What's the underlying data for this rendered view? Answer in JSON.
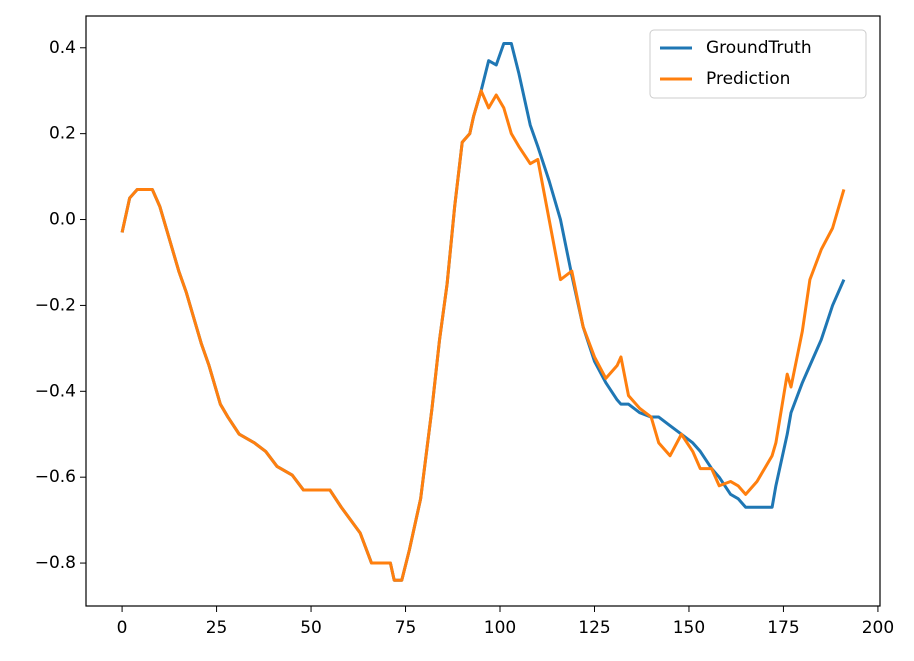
{
  "chart_data": {
    "type": "line",
    "x": [
      0,
      2,
      4,
      8,
      10,
      13,
      15,
      17,
      19,
      21,
      23,
      26,
      28,
      31,
      35,
      38,
      41,
      45,
      48,
      50,
      55,
      58,
      63,
      66,
      71,
      72,
      74,
      76,
      79,
      82,
      84,
      86,
      88,
      90,
      92,
      93,
      95,
      97,
      99,
      101,
      103,
      105,
      108,
      110,
      113,
      116,
      119,
      122,
      125,
      128,
      131,
      132,
      134,
      137,
      140,
      142,
      145,
      148,
      151,
      153,
      156,
      158,
      161,
      163,
      165,
      168,
      170,
      172,
      173,
      176,
      177,
      180,
      182,
      185,
      188,
      191
    ],
    "series": [
      {
        "name": "GroundTruth",
        "color": "#1f77b4",
        "values": [
          -0.03,
          0.05,
          0.07,
          0.07,
          0.03,
          -0.06,
          -0.12,
          -0.17,
          -0.23,
          -0.29,
          -0.34,
          -0.43,
          -0.46,
          -0.5,
          -0.52,
          -0.54,
          -0.575,
          -0.595,
          -0.63,
          -0.63,
          -0.63,
          -0.67,
          -0.73,
          -0.8,
          -0.8,
          -0.84,
          -0.84,
          -0.77,
          -0.65,
          -0.44,
          -0.28,
          -0.15,
          0.03,
          0.18,
          0.2,
          0.24,
          0.3,
          0.37,
          0.36,
          0.41,
          0.41,
          0.34,
          0.22,
          0.17,
          0.09,
          0.0,
          -0.13,
          -0.25,
          -0.33,
          -0.38,
          -0.42,
          -0.43,
          -0.43,
          -0.45,
          -0.46,
          -0.46,
          -0.48,
          -0.5,
          -0.52,
          -0.54,
          -0.58,
          -0.6,
          -0.64,
          -0.65,
          -0.67,
          -0.67,
          -0.67,
          -0.67,
          -0.62,
          -0.5,
          -0.45,
          -0.38,
          -0.34,
          -0.28,
          -0.2,
          -0.14
        ]
      },
      {
        "name": "Prediction",
        "color": "#ff7f0e",
        "values": [
          -0.03,
          0.05,
          0.07,
          0.07,
          0.03,
          -0.06,
          -0.12,
          -0.17,
          -0.23,
          -0.29,
          -0.34,
          -0.43,
          -0.46,
          -0.5,
          -0.52,
          -0.54,
          -0.575,
          -0.595,
          -0.63,
          -0.63,
          -0.63,
          -0.67,
          -0.73,
          -0.8,
          -0.8,
          -0.84,
          -0.84,
          -0.77,
          -0.65,
          -0.44,
          -0.28,
          -0.15,
          0.03,
          0.18,
          0.2,
          0.24,
          0.3,
          0.26,
          0.29,
          0.26,
          0.2,
          0.17,
          0.13,
          0.14,
          0.0,
          -0.14,
          -0.12,
          -0.25,
          -0.32,
          -0.37,
          -0.34,
          -0.32,
          -0.41,
          -0.44,
          -0.46,
          -0.52,
          -0.55,
          -0.5,
          -0.54,
          -0.58,
          -0.58,
          -0.62,
          -0.61,
          -0.62,
          -0.64,
          -0.61,
          -0.58,
          -0.55,
          -0.52,
          -0.36,
          -0.39,
          -0.26,
          -0.14,
          -0.07,
          -0.02,
          0.07
        ]
      }
    ],
    "xlim": [
      -9.55,
      200.55
    ],
    "ylim": [
      -0.9,
      0.474
    ],
    "xticks": [
      0,
      25,
      50,
      75,
      100,
      125,
      150,
      175,
      200
    ],
    "yticks": [
      {
        "value": -0.8,
        "label": "−0.8"
      },
      {
        "value": -0.6,
        "label": "−0.6"
      },
      {
        "value": -0.4,
        "label": "−0.4"
      },
      {
        "value": -0.2,
        "label": "−0.2"
      },
      {
        "value": 0,
        "label": "0.0"
      },
      0.2,
      0.4
    ],
    "legend": "upper right"
  }
}
